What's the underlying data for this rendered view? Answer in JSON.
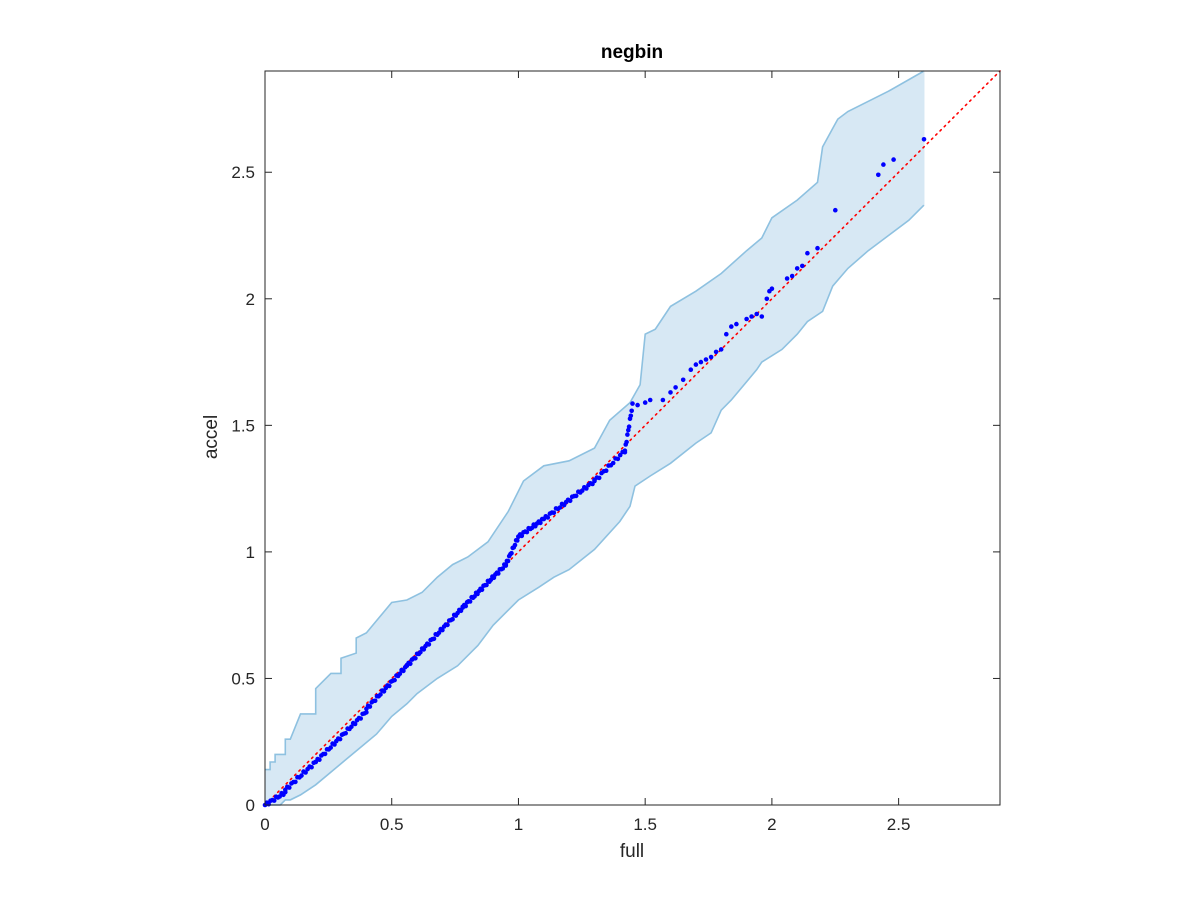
{
  "chart_data": {
    "type": "scatter",
    "title": "negbin",
    "xlabel": "full",
    "ylabel": "accel",
    "xlim": [
      0,
      2.9
    ],
    "ylim": [
      0,
      2.9
    ],
    "xticks": [
      0,
      0.5,
      1,
      1.5,
      2,
      2.5
    ],
    "yticks": [
      0,
      0.5,
      1,
      1.5,
      2,
      2.5
    ],
    "xtick_labels": [
      "0",
      "0.5",
      "1",
      "1.5",
      "2",
      "2.5"
    ],
    "ytick_labels": [
      "0",
      "0.5",
      "1",
      "1.5",
      "2",
      "2.5"
    ],
    "grid": false,
    "box": true,
    "colors": {
      "points": "#0000ff",
      "reference_line": "#ff0000",
      "band_fill": "#d7e8f4",
      "band_edge": "#8ec1e0",
      "axes": "#262626"
    },
    "reference_line": {
      "style": "dotted",
      "x": [
        0,
        2.9
      ],
      "y": [
        0,
        2.9
      ]
    },
    "confidence_band": {
      "upper": [
        [
          0,
          0.14
        ],
        [
          0.02,
          0.14
        ],
        [
          0.02,
          0.17
        ],
        [
          0.04,
          0.17
        ],
        [
          0.04,
          0.2
        ],
        [
          0.08,
          0.2
        ],
        [
          0.08,
          0.26
        ],
        [
          0.1,
          0.26
        ],
        [
          0.14,
          0.36
        ],
        [
          0.2,
          0.36
        ],
        [
          0.2,
          0.46
        ],
        [
          0.26,
          0.52
        ],
        [
          0.3,
          0.52
        ],
        [
          0.3,
          0.58
        ],
        [
          0.36,
          0.6
        ],
        [
          0.36,
          0.66
        ],
        [
          0.4,
          0.68
        ],
        [
          0.5,
          0.8
        ],
        [
          0.56,
          0.81
        ],
        [
          0.62,
          0.84
        ],
        [
          0.68,
          0.9
        ],
        [
          0.74,
          0.95
        ],
        [
          0.8,
          0.98
        ],
        [
          0.88,
          1.04
        ],
        [
          0.96,
          1.16
        ],
        [
          1.02,
          1.28
        ],
        [
          1.1,
          1.34
        ],
        [
          1.2,
          1.36
        ],
        [
          1.3,
          1.41
        ],
        [
          1.36,
          1.52
        ],
        [
          1.44,
          1.59
        ],
        [
          1.48,
          1.66
        ],
        [
          1.5,
          1.86
        ],
        [
          1.54,
          1.88
        ],
        [
          1.6,
          1.97
        ],
        [
          1.7,
          2.03
        ],
        [
          1.8,
          2.1
        ],
        [
          1.9,
          2.19
        ],
        [
          1.96,
          2.24
        ],
        [
          2.0,
          2.32
        ],
        [
          2.1,
          2.39
        ],
        [
          2.18,
          2.46
        ],
        [
          2.2,
          2.6
        ],
        [
          2.26,
          2.71
        ],
        [
          2.3,
          2.74
        ],
        [
          2.4,
          2.79
        ],
        [
          2.46,
          2.82
        ],
        [
          2.6,
          2.9
        ]
      ],
      "lower": [
        [
          0,
          0
        ],
        [
          0.06,
          0
        ],
        [
          0.08,
          0.02
        ],
        [
          0.1,
          0.02
        ],
        [
          0.14,
          0.04
        ],
        [
          0.2,
          0.08
        ],
        [
          0.26,
          0.13
        ],
        [
          0.32,
          0.18
        ],
        [
          0.38,
          0.23
        ],
        [
          0.44,
          0.28
        ],
        [
          0.5,
          0.35
        ],
        [
          0.56,
          0.4
        ],
        [
          0.6,
          0.44
        ],
        [
          0.68,
          0.5
        ],
        [
          0.76,
          0.55
        ],
        [
          0.84,
          0.63
        ],
        [
          0.9,
          0.71
        ],
        [
          1.0,
          0.81
        ],
        [
          1.08,
          0.86
        ],
        [
          1.14,
          0.9
        ],
        [
          1.2,
          0.93
        ],
        [
          1.3,
          1.01
        ],
        [
          1.4,
          1.12
        ],
        [
          1.44,
          1.18
        ],
        [
          1.46,
          1.26
        ],
        [
          1.52,
          1.3
        ],
        [
          1.6,
          1.35
        ],
        [
          1.7,
          1.43
        ],
        [
          1.76,
          1.47
        ],
        [
          1.8,
          1.56
        ],
        [
          1.84,
          1.6
        ],
        [
          1.94,
          1.72
        ],
        [
          1.96,
          1.75
        ],
        [
          2.04,
          1.8
        ],
        [
          2.1,
          1.86
        ],
        [
          2.14,
          1.91
        ],
        [
          2.2,
          1.95
        ],
        [
          2.24,
          2.05
        ],
        [
          2.3,
          2.12
        ],
        [
          2.38,
          2.19
        ],
        [
          2.46,
          2.25
        ],
        [
          2.54,
          2.31
        ],
        [
          2.6,
          2.37
        ]
      ]
    },
    "point_clusters": [
      {
        "x0": 0.0,
        "x1": 0.08,
        "y0": 0.0,
        "y1": 0.05,
        "n": 12
      },
      {
        "x0": 0.08,
        "x1": 0.2,
        "y0": 0.06,
        "y1": 0.17,
        "n": 16
      },
      {
        "x0": 0.2,
        "x1": 0.4,
        "y0": 0.17,
        "y1": 0.37,
        "n": 28
      },
      {
        "x0": 0.4,
        "x1": 0.56,
        "y0": 0.38,
        "y1": 0.55,
        "n": 24
      },
      {
        "x0": 0.56,
        "x1": 0.78,
        "y0": 0.55,
        "y1": 0.78,
        "n": 34
      },
      {
        "x0": 0.78,
        "x1": 0.95,
        "y0": 0.78,
        "y1": 0.95,
        "n": 30
      },
      {
        "x0": 0.95,
        "x1": 1.0,
        "y0": 0.95,
        "y1": 1.06,
        "n": 12
      },
      {
        "x0": 1.0,
        "x1": 1.1,
        "y0": 1.06,
        "y1": 1.13,
        "n": 16
      },
      {
        "x0": 1.1,
        "x1": 1.3,
        "y0": 1.13,
        "y1": 1.28,
        "n": 26
      },
      {
        "x0": 1.3,
        "x1": 1.42,
        "y0": 1.28,
        "y1": 1.4,
        "n": 14
      },
      {
        "x0": 1.42,
        "x1": 1.45,
        "y0": 1.4,
        "y1": 1.58,
        "n": 10
      }
    ],
    "points": [
      {
        "x": 1.47,
        "y": 1.58
      },
      {
        "x": 1.5,
        "y": 1.59
      },
      {
        "x": 1.52,
        "y": 1.6
      },
      {
        "x": 1.57,
        "y": 1.6
      },
      {
        "x": 1.6,
        "y": 1.63
      },
      {
        "x": 1.62,
        "y": 1.65
      },
      {
        "x": 1.65,
        "y": 1.68
      },
      {
        "x": 1.68,
        "y": 1.72
      },
      {
        "x": 1.7,
        "y": 1.74
      },
      {
        "x": 1.72,
        "y": 1.75
      },
      {
        "x": 1.74,
        "y": 1.76
      },
      {
        "x": 1.76,
        "y": 1.77
      },
      {
        "x": 1.78,
        "y": 1.79
      },
      {
        "x": 1.8,
        "y": 1.8
      },
      {
        "x": 1.82,
        "y": 1.86
      },
      {
        "x": 1.84,
        "y": 1.89
      },
      {
        "x": 1.86,
        "y": 1.9
      },
      {
        "x": 1.9,
        "y": 1.92
      },
      {
        "x": 1.92,
        "y": 1.93
      },
      {
        "x": 1.94,
        "y": 1.94
      },
      {
        "x": 1.96,
        "y": 1.93
      },
      {
        "x": 1.98,
        "y": 2.0
      },
      {
        "x": 1.99,
        "y": 2.03
      },
      {
        "x": 2.0,
        "y": 2.04
      },
      {
        "x": 2.06,
        "y": 2.08
      },
      {
        "x": 2.08,
        "y": 2.09
      },
      {
        "x": 2.1,
        "y": 2.12
      },
      {
        "x": 2.12,
        "y": 2.13
      },
      {
        "x": 2.14,
        "y": 2.18
      },
      {
        "x": 2.18,
        "y": 2.2
      },
      {
        "x": 2.25,
        "y": 2.35
      },
      {
        "x": 2.42,
        "y": 2.49
      },
      {
        "x": 2.44,
        "y": 2.53
      },
      {
        "x": 2.48,
        "y": 2.55
      },
      {
        "x": 2.6,
        "y": 2.63
      }
    ]
  }
}
